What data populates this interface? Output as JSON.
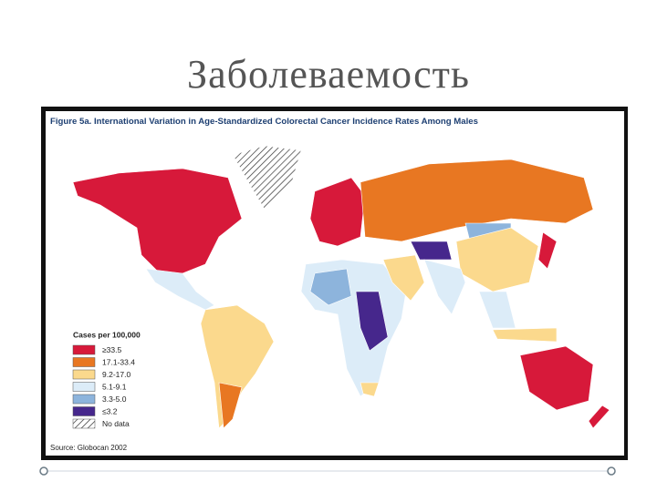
{
  "slide": {
    "title": "Заболеваемость"
  },
  "figure": {
    "title": "Figure 5a. International Variation in Age-Standardized Colorectal Cancer Incidence Rates Among Males",
    "legend": {
      "title": "Cases per 100,000",
      "items": [
        {
          "label": "≥33.5",
          "color": "#d7193a"
        },
        {
          "label": "17.1-33.4",
          "color": "#e87722"
        },
        {
          "label": "9.2-17.0",
          "color": "#fbd98d"
        },
        {
          "label": "5.1-9.1",
          "color": "#dcecf8"
        },
        {
          "label": "3.3-5.0",
          "color": "#8db4dc"
        },
        {
          "label": "≤3.2",
          "color": "#46278c"
        },
        {
          "label": "No data",
          "color": "#ffffff",
          "pattern": "hatched"
        }
      ]
    },
    "source": "Source: Globocan 2002"
  }
}
